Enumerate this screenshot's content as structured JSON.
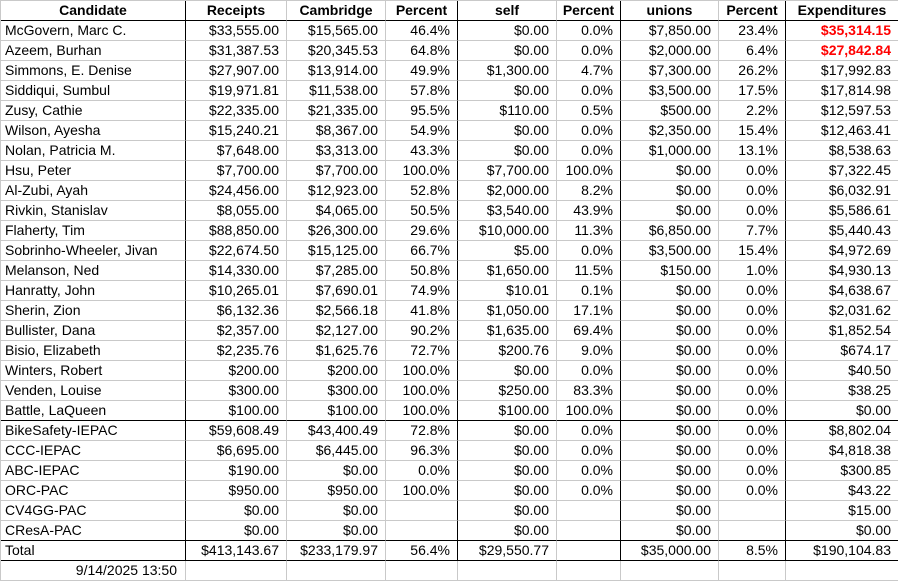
{
  "table": {
    "columns": [
      "Candidate",
      "Receipts",
      "Cambridge",
      "Percent",
      "self",
      "Percent",
      "unions",
      "Percent",
      "Expenditures"
    ],
    "candidate_rows": [
      {
        "name": "McGovern, Marc C.",
        "values": [
          "$33,555.00",
          "$15,565.00",
          "46.4%",
          "$0.00",
          "0.0%",
          "$7,850.00",
          "23.4%",
          "$35,314.15"
        ],
        "expenditures_red": true
      },
      {
        "name": "Azeem, Burhan",
        "values": [
          "$31,387.53",
          "$20,345.53",
          "64.8%",
          "$0.00",
          "0.0%",
          "$2,000.00",
          "6.4%",
          "$27,842.84"
        ],
        "expenditures_red": true
      },
      {
        "name": "Simmons, E. Denise",
        "values": [
          "$27,907.00",
          "$13,914.00",
          "49.9%",
          "$1,300.00",
          "4.7%",
          "$7,300.00",
          "26.2%",
          "$17,992.83"
        ],
        "expenditures_red": false
      },
      {
        "name": "Siddiqui, Sumbul",
        "values": [
          "$19,971.81",
          "$11,538.00",
          "57.8%",
          "$0.00",
          "0.0%",
          "$3,500.00",
          "17.5%",
          "$17,814.98"
        ],
        "expenditures_red": false
      },
      {
        "name": "Zusy, Cathie",
        "values": [
          "$22,335.00",
          "$21,335.00",
          "95.5%",
          "$110.00",
          "0.5%",
          "$500.00",
          "2.2%",
          "$12,597.53"
        ],
        "expenditures_red": false
      },
      {
        "name": "Wilson, Ayesha",
        "values": [
          "$15,240.21",
          "$8,367.00",
          "54.9%",
          "$0.00",
          "0.0%",
          "$2,350.00",
          "15.4%",
          "$12,463.41"
        ],
        "expenditures_red": false
      },
      {
        "name": "Nolan, Patricia M.",
        "values": [
          "$7,648.00",
          "$3,313.00",
          "43.3%",
          "$0.00",
          "0.0%",
          "$1,000.00",
          "13.1%",
          "$8,538.63"
        ],
        "expenditures_red": false
      },
      {
        "name": "Hsu, Peter",
        "values": [
          "$7,700.00",
          "$7,700.00",
          "100.0%",
          "$7,700.00",
          "100.0%",
          "$0.00",
          "0.0%",
          "$7,322.45"
        ],
        "expenditures_red": false
      },
      {
        "name": "Al-Zubi, Ayah",
        "values": [
          "$24,456.00",
          "$12,923.00",
          "52.8%",
          "$2,000.00",
          "8.2%",
          "$0.00",
          "0.0%",
          "$6,032.91"
        ],
        "expenditures_red": false
      },
      {
        "name": "Rivkin, Stanislav",
        "values": [
          "$8,055.00",
          "$4,065.00",
          "50.5%",
          "$3,540.00",
          "43.9%",
          "$0.00",
          "0.0%",
          "$5,586.61"
        ],
        "expenditures_red": false
      },
      {
        "name": "Flaherty, Tim",
        "values": [
          "$88,850.00",
          "$26,300.00",
          "29.6%",
          "$10,000.00",
          "11.3%",
          "$6,850.00",
          "7.7%",
          "$5,440.43"
        ],
        "expenditures_red": false
      },
      {
        "name": "Sobrinho-Wheeler, Jivan",
        "values": [
          "$22,674.50",
          "$15,125.00",
          "66.7%",
          "$5.00",
          "0.0%",
          "$3,500.00",
          "15.4%",
          "$4,972.69"
        ],
        "expenditures_red": false
      },
      {
        "name": "Melanson, Ned",
        "values": [
          "$14,330.00",
          "$7,285.00",
          "50.8%",
          "$1,650.00",
          "11.5%",
          "$150.00",
          "1.0%",
          "$4,930.13"
        ],
        "expenditures_red": false
      },
      {
        "name": "Hanratty, John",
        "values": [
          "$10,265.01",
          "$7,690.01",
          "74.9%",
          "$10.01",
          "0.1%",
          "$0.00",
          "0.0%",
          "$4,638.67"
        ],
        "expenditures_red": false
      },
      {
        "name": "Sherin, Zion",
        "values": [
          "$6,132.36",
          "$2,566.18",
          "41.8%",
          "$1,050.00",
          "17.1%",
          "$0.00",
          "0.0%",
          "$2,031.62"
        ],
        "expenditures_red": false
      },
      {
        "name": "Bullister, Dana",
        "values": [
          "$2,357.00",
          "$2,127.00",
          "90.2%",
          "$1,635.00",
          "69.4%",
          "$0.00",
          "0.0%",
          "$1,852.54"
        ],
        "expenditures_red": false
      },
      {
        "name": "Bisio, Elizabeth",
        "values": [
          "$2,235.76",
          "$1,625.76",
          "72.7%",
          "$200.76",
          "9.0%",
          "$0.00",
          "0.0%",
          "$674.17"
        ],
        "expenditures_red": false
      },
      {
        "name": "Winters, Robert",
        "values": [
          "$200.00",
          "$200.00",
          "100.0%",
          "$0.00",
          "0.0%",
          "$0.00",
          "0.0%",
          "$40.50"
        ],
        "expenditures_red": false
      },
      {
        "name": "Venden, Louise",
        "values": [
          "$300.00",
          "$300.00",
          "100.0%",
          "$250.00",
          "83.3%",
          "$0.00",
          "0.0%",
          "$38.25"
        ],
        "expenditures_red": false
      },
      {
        "name": "Battle, LaQueen",
        "values": [
          "$100.00",
          "$100.00",
          "100.0%",
          "$100.00",
          "100.0%",
          "$0.00",
          "0.0%",
          "$0.00"
        ],
        "expenditures_red": false
      }
    ],
    "pac_rows": [
      {
        "name": "BikeSafety-IEPAC",
        "values": [
          "$59,608.49",
          "$43,400.49",
          "72.8%",
          "$0.00",
          "0.0%",
          "$0.00",
          "0.0%",
          "$8,802.04"
        ],
        "expenditures_red": false
      },
      {
        "name": "CCC-IEPAC",
        "values": [
          "$6,695.00",
          "$6,445.00",
          "96.3%",
          "$0.00",
          "0.0%",
          "$0.00",
          "0.0%",
          "$4,818.38"
        ],
        "expenditures_red": false
      },
      {
        "name": "ABC-IEPAC",
        "values": [
          "$190.00",
          "$0.00",
          "0.0%",
          "$0.00",
          "0.0%",
          "$0.00",
          "0.0%",
          "$300.85"
        ],
        "expenditures_red": false
      },
      {
        "name": "ORC-PAC",
        "values": [
          "$950.00",
          "$950.00",
          "100.0%",
          "$0.00",
          "0.0%",
          "$0.00",
          "0.0%",
          "$43.22"
        ],
        "expenditures_red": false
      },
      {
        "name": "CV4GG-PAC",
        "values": [
          "$0.00",
          "$0.00",
          "",
          "$0.00",
          "",
          "$0.00",
          "",
          "$15.00"
        ],
        "expenditures_red": false
      },
      {
        "name": "CResA-PAC",
        "values": [
          "$0.00",
          "$0.00",
          "",
          "$0.00",
          "",
          "$0.00",
          "",
          "$0.00"
        ],
        "expenditures_red": false
      }
    ],
    "total_row": {
      "name": "Total",
      "values": [
        "$413,143.67",
        "$233,179.97",
        "56.4%",
        "$29,550.77",
        "",
        "$35,000.00",
        "8.5%",
        "$190,104.83"
      ]
    }
  },
  "footer": {
    "timestamp": "9/14/2025 13:50"
  },
  "styles": {
    "alert_color": "#ff0000",
    "grid_line_color": "#c9c9c9",
    "group_border_color": "#000000",
    "background_color": "#ffffff"
  }
}
